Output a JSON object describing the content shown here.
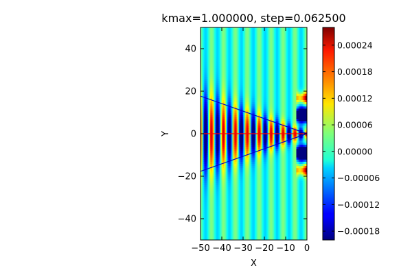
{
  "chart_data": {
    "type": "heatmap",
    "title": "kmax=1.000000, step=0.062500",
    "xlabel": "X",
    "ylabel": "Y",
    "xlim": [
      -50,
      0
    ],
    "ylim": [
      -50,
      50
    ],
    "x_ticks": [
      -50,
      -40,
      -30,
      -20,
      -10,
      0
    ],
    "x_tick_labels": [
      "−50",
      "−40",
      "−30",
      "−20",
      "−10",
      "0"
    ],
    "y_ticks": [
      -40,
      -20,
      0,
      20,
      40
    ],
    "y_tick_labels": [
      "−40",
      "−20",
      "0",
      "20",
      "40"
    ],
    "colormap": "jet",
    "color_range": [
      -0.0002,
      0.00028
    ],
    "colorbar_ticks": [
      0.00024,
      0.00018,
      0.00012,
      6e-05,
      0.0,
      -6e-05,
      -0.00012,
      -0.00018
    ],
    "colorbar_tick_labels": [
      "0.00024",
      "0.00018",
      "0.00012",
      "0.00006",
      "0.00000",
      "−0.00006",
      "−0.00012",
      "−0.00018"
    ],
    "field": {
      "stripe_period_x": 5.6,
      "stripe_amplitude_far": 4e-05,
      "stripe_amplitude_in_cone": 0.00024,
      "cone_apex": [
        0,
        0
      ],
      "cone_half_angle_deg": 19.5
    },
    "overlay_lines": [
      {
        "name": "",
        "color": "#0000cc",
        "points": [
          [
            -50,
            17.7
          ],
          [
            0,
            0
          ],
          [
            -50,
            -17.7
          ]
        ]
      },
      {
        "name": "",
        "color": "#ff0000",
        "points": [
          [
            -50,
            0
          ],
          [
            0,
            0
          ]
        ]
      }
    ]
  }
}
